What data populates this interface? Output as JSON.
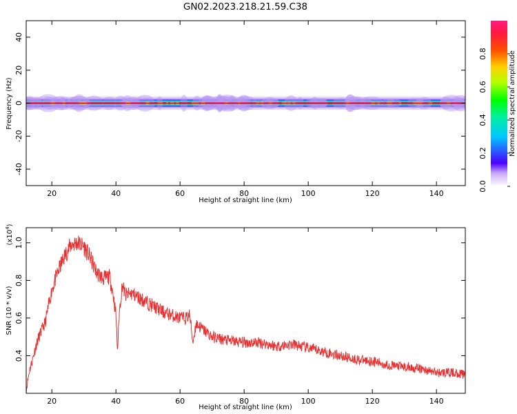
{
  "chart_data": [
    {
      "type": "heatmap",
      "title": "GN02.2023.218.21.59.C38",
      "xlabel": "Height of straight line (km)",
      "ylabel": "Frequency (Hz)",
      "xlim": [
        12,
        149
      ],
      "ylim": [
        -50,
        50
      ],
      "xticks": [
        20,
        40,
        60,
        80,
        100,
        120,
        140
      ],
      "yticks": [
        -40,
        -20,
        0,
        20,
        40
      ],
      "colorbar": {
        "label": "Normalized spectral amplitude",
        "range": [
          0,
          1
        ],
        "ticks": [
          "0.0",
          "0.2",
          "0.4",
          "0.6",
          "0.8"
        ]
      },
      "band": {
        "center_hz": 0,
        "core_halfwidth_hz": 0.6,
        "outer_halfwidth_hz": 4,
        "notes": "Narrow high-amplitude ridge at 0 Hz across the full height range"
      }
    },
    {
      "type": "line",
      "xlabel": "Height of straight line (km)",
      "ylabel": "SNR (10 * v/v)",
      "y_scale_label": "(x10",
      "y_scale_exp": "4",
      "y_scale_close": ")",
      "xlim": [
        12,
        149
      ],
      "ylim": [
        0.2,
        1.08
      ],
      "xticks": [
        20,
        40,
        60,
        80,
        100,
        120,
        140
      ],
      "yticks": [
        "0.4",
        "0.6",
        "0.8",
        "1.0"
      ],
      "line_color": "#e83030",
      "series": [
        {
          "x": [
            12,
            13,
            14,
            15,
            16,
            18,
            20,
            22,
            24,
            26,
            28,
            30,
            32,
            34,
            36,
            38,
            39,
            40,
            40.5,
            41,
            42,
            43,
            45,
            50,
            55,
            60,
            62,
            63,
            64,
            65,
            70,
            75,
            80,
            85,
            90,
            95,
            100,
            105,
            110,
            115,
            120,
            125,
            130,
            135,
            140,
            145,
            149
          ],
          "y": [
            0.22,
            0.32,
            0.38,
            0.45,
            0.5,
            0.58,
            0.75,
            0.85,
            0.93,
            0.99,
            1.0,
            0.98,
            0.92,
            0.84,
            0.81,
            0.82,
            0.74,
            0.62,
            0.42,
            0.62,
            0.78,
            0.72,
            0.73,
            0.68,
            0.63,
            0.6,
            0.6,
            0.62,
            0.47,
            0.57,
            0.5,
            0.48,
            0.47,
            0.47,
            0.45,
            0.46,
            0.44,
            0.42,
            0.4,
            0.38,
            0.37,
            0.35,
            0.34,
            0.33,
            0.31,
            0.31,
            0.3
          ]
        }
      ]
    }
  ]
}
